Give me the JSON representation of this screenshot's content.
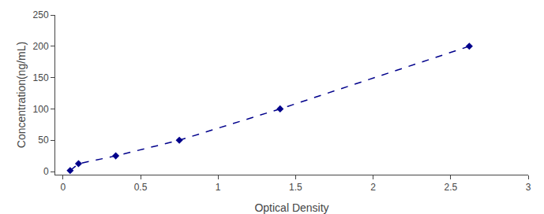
{
  "chart_data": {
    "type": "line",
    "x": [
      0.046,
      0.1,
      0.34,
      0.75,
      1.4,
      2.62
    ],
    "values": [
      1.56,
      12.5,
      25.0,
      50.0,
      100.0,
      200.0
    ],
    "color": "#00008B",
    "marker": "diamond",
    "line_style": "dashed",
    "xlabel": "Optical Density",
    "ylabel": "Concentration(ng/mL)",
    "xlim": [
      -0.05,
      3.0
    ],
    "ylim": [
      -5,
      250
    ],
    "xticks": [
      0,
      0.5,
      1,
      1.5,
      2,
      2.5,
      3
    ],
    "yticks": [
      0,
      50,
      100,
      150,
      200,
      250
    ],
    "grid": false
  }
}
